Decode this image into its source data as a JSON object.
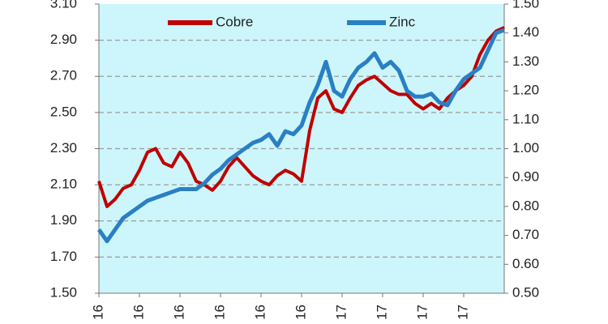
{
  "chart_data": {
    "type": "line",
    "categories": [
      "16",
      null,
      null,
      null,
      null,
      "16",
      null,
      null,
      null,
      null,
      "16",
      null,
      null,
      null,
      null,
      "16",
      null,
      null,
      null,
      null,
      "16",
      null,
      null,
      null,
      null,
      "16",
      null,
      null,
      null,
      null,
      "17",
      null,
      null,
      null,
      null,
      "17",
      null,
      null,
      null,
      null,
      "17",
      null,
      null,
      null,
      null,
      "17",
      null,
      null,
      null,
      null,
      null
    ],
    "series": [
      {
        "name": "Cobre",
        "color": "#c00000",
        "values": [
          2.12,
          1.98,
          2.02,
          2.08,
          2.1,
          2.18,
          2.28,
          2.3,
          2.22,
          2.2,
          2.28,
          2.22,
          2.12,
          2.1,
          2.07,
          2.12,
          2.2,
          2.25,
          2.2,
          2.15,
          2.12,
          2.1,
          2.15,
          2.18,
          2.16,
          2.12,
          2.4,
          2.58,
          2.62,
          2.52,
          2.5,
          2.58,
          2.65,
          2.68,
          2.7,
          2.66,
          2.62,
          2.6,
          2.6,
          2.55,
          2.52,
          2.55,
          2.52,
          2.58,
          2.62,
          2.65,
          2.7,
          2.82,
          2.9,
          2.95,
          2.97
        ]
      },
      {
        "name": "Zinc",
        "color": "#2a7fc4",
        "axis": "y2",
        "values": [
          0.72,
          0.68,
          0.72,
          0.76,
          0.78,
          0.8,
          0.82,
          0.83,
          0.84,
          0.85,
          0.86,
          0.86,
          0.86,
          0.88,
          0.91,
          0.93,
          0.96,
          0.98,
          1.0,
          1.02,
          1.03,
          1.05,
          1.01,
          1.06,
          1.05,
          1.08,
          1.16,
          1.22,
          1.3,
          1.2,
          1.18,
          1.24,
          1.28,
          1.3,
          1.33,
          1.28,
          1.3,
          1.27,
          1.2,
          1.18,
          1.18,
          1.19,
          1.16,
          1.15,
          1.2,
          1.24,
          1.26,
          1.28,
          1.34,
          1.4,
          1.41
        ]
      }
    ],
    "ylim": [
      1.5,
      3.1
    ],
    "yticks": [
      {
        "value": 1.5,
        "label": "1.50"
      },
      {
        "value": 1.7,
        "label": "1.70"
      },
      {
        "value": 1.9,
        "label": "1.90"
      },
      {
        "value": 2.1,
        "label": "2.10"
      },
      {
        "value": 2.3,
        "label": "2.30"
      },
      {
        "value": 2.5,
        "label": "2.50"
      },
      {
        "value": 2.7,
        "label": "2.70"
      },
      {
        "value": 2.9,
        "label": "2.90"
      },
      {
        "value": 3.1,
        "label": "3.10"
      }
    ],
    "y2lim": [
      0.5,
      1.5
    ],
    "y2ticks": [
      {
        "value": 0.5,
        "label": "0.50"
      },
      {
        "value": 0.6,
        "label": "0.60"
      },
      {
        "value": 0.7,
        "label": "0.70"
      },
      {
        "value": 0.8,
        "label": "0.80"
      },
      {
        "value": 0.9,
        "label": "0.90"
      },
      {
        "value": 1.0,
        "label": "1.00"
      },
      {
        "value": 1.1,
        "label": "1.10"
      },
      {
        "value": 1.2,
        "label": "1.20"
      },
      {
        "value": 1.3,
        "label": "1.30"
      },
      {
        "value": 1.4,
        "label": "1.40"
      },
      {
        "value": 1.5,
        "label": "1.50"
      }
    ],
    "grid": true,
    "background": "#ccf6fb"
  }
}
